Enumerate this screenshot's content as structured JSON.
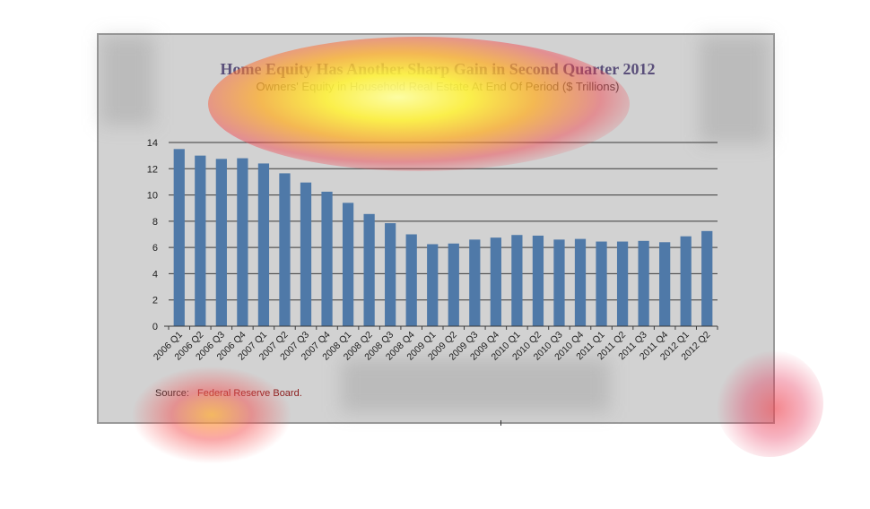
{
  "chart_data": {
    "type": "bar",
    "title": "Home Equity Has Another Sharp Gain in Second Quarter 2012",
    "subtitle": "Owners' Equity in Household Real Estate At End Of Period ($ Trillions)",
    "source_label": "Source:",
    "source_text": "Federal Reserve Board.",
    "categories": [
      "2006 Q1",
      "2006 Q2",
      "2006 Q3",
      "2006 Q4",
      "2007 Q1",
      "2007 Q2",
      "2007 Q3",
      "2007 Q4",
      "2008 Q1",
      "2008 Q2",
      "2008 Q3",
      "2008 Q4",
      "2009 Q1",
      "2009 Q2",
      "2009 Q3",
      "2009 Q4",
      "2010 Q1",
      "2010 Q2",
      "2010 Q3",
      "2010 Q4",
      "2011 Q1",
      "2011 Q2",
      "2011 Q3",
      "2011 Q4",
      "2012 Q1",
      "2012 Q2"
    ],
    "values": [
      13.5,
      13.0,
      12.75,
      12.8,
      12.4,
      11.65,
      10.95,
      10.25,
      9.4,
      8.55,
      7.85,
      7.0,
      6.25,
      6.3,
      6.6,
      6.75,
      6.95,
      6.9,
      6.6,
      6.65,
      6.45,
      6.45,
      6.5,
      6.4,
      6.85,
      7.25
    ],
    "ylim": [
      0,
      14
    ],
    "yticks": [
      0,
      2,
      4,
      6,
      8,
      10,
      12,
      14
    ],
    "grid": true,
    "bar_color": "#4f79a8",
    "xlabel": "",
    "ylabel": ""
  },
  "colors": {
    "frame_bg": "#d2d2d2",
    "title_color": "#5a4f7a",
    "subtitle_color": "#444444",
    "source_text_color": "#8a1a1a"
  }
}
